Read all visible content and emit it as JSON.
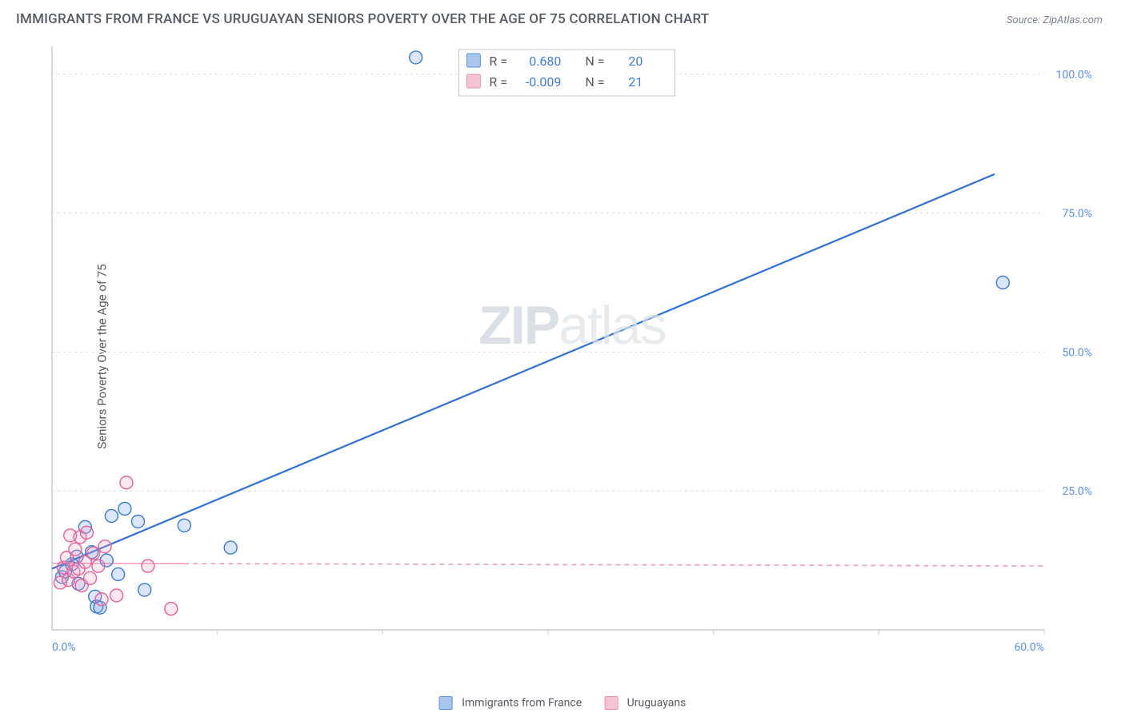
{
  "title": "IMMIGRANTS FROM FRANCE VS URUGUAYAN SENIORS POVERTY OVER THE AGE OF 75 CORRELATION CHART",
  "source": "Source: ZipAtlas.com",
  "y_axis_label": "Seniors Poverty Over the Age of 75",
  "watermark_a": "ZIP",
  "watermark_b": "atlas",
  "chart": {
    "type": "scatter-with-regression",
    "background_color": "#ffffff",
    "xlim": [
      0,
      60
    ],
    "ylim": [
      0,
      105
    ],
    "x_ticks": [
      0,
      60
    ],
    "x_tick_labels": [
      "0.0%",
      "60.0%"
    ],
    "y_ticks": [
      25,
      50,
      75,
      100
    ],
    "y_tick_labels": [
      "25.0%",
      "50.0%",
      "75.0%",
      "100.0%"
    ],
    "x_tick_color": "#5a8fe6",
    "y_tick_color": "#5a8fe6",
    "tick_fontsize": 14,
    "grid_color": "#d8dce2",
    "grid_dash": "3,4",
    "x_grid_positions": [
      10,
      20,
      30,
      40,
      50,
      60
    ],
    "axis_line_color": "#c8cdd5",
    "marker_radius": 8,
    "marker_stroke_width": 1.4,
    "marker_fill_opacity": 0.25,
    "series": [
      {
        "name": "Immigrants from France",
        "color": "#6aa1ea",
        "stroke": "#3b79d0",
        "points": [
          [
            0.6,
            9.5
          ],
          [
            0.8,
            10.5
          ],
          [
            1.2,
            11.8
          ],
          [
            1.5,
            13.2
          ],
          [
            1.6,
            8.3
          ],
          [
            2.0,
            18.5
          ],
          [
            2.4,
            14.0
          ],
          [
            2.6,
            6.0
          ],
          [
            2.7,
            4.2
          ],
          [
            2.9,
            4.0
          ],
          [
            3.3,
            12.5
          ],
          [
            3.6,
            20.5
          ],
          [
            4.0,
            10.0
          ],
          [
            4.4,
            21.8
          ],
          [
            5.2,
            19.5
          ],
          [
            5.6,
            7.2
          ],
          [
            8.0,
            18.8
          ],
          [
            10.8,
            14.8
          ],
          [
            22.0,
            103.0
          ],
          [
            57.5,
            62.5
          ]
        ],
        "regression": {
          "x1": 0,
          "y1": 11.0,
          "x2": 57,
          "y2": 82.0,
          "stroke": "#2e6fd8",
          "width": 2.2,
          "dash": ""
        }
      },
      {
        "name": "Uruguayans",
        "color": "#f3a6c0",
        "stroke": "#e6609a",
        "points": [
          [
            0.5,
            8.5
          ],
          [
            0.7,
            11.2
          ],
          [
            0.9,
            13.0
          ],
          [
            1.0,
            9.0
          ],
          [
            1.1,
            17.0
          ],
          [
            1.3,
            10.5
          ],
          [
            1.4,
            14.5
          ],
          [
            1.6,
            11.0
          ],
          [
            1.7,
            16.7
          ],
          [
            1.8,
            8.0
          ],
          [
            2.0,
            12.2
          ],
          [
            2.1,
            17.5
          ],
          [
            2.3,
            9.3
          ],
          [
            2.5,
            13.8
          ],
          [
            2.8,
            11.5
          ],
          [
            3.0,
            5.5
          ],
          [
            3.2,
            15.0
          ],
          [
            3.9,
            6.2
          ],
          [
            4.5,
            26.5
          ],
          [
            5.8,
            11.5
          ],
          [
            7.2,
            3.8
          ]
        ],
        "regression": {
          "x1": 0,
          "y1": 12.0,
          "x2": 60,
          "y2": 11.5,
          "stroke": "#f19bb9",
          "width": 1.6,
          "dash": "6,5"
        }
      }
    ]
  },
  "stats_box": {
    "border_color": "#bfc6d0",
    "bg": "#ffffff",
    "fontsize": 16,
    "label_color": "#555a63",
    "value_color": "#3e7de0",
    "rows": [
      {
        "swatch": "#a9c6ef",
        "swatch_stroke": "#5b8fde",
        "R": "0.680",
        "N": "20"
      },
      {
        "swatch": "#f6c3d5",
        "swatch_stroke": "#ea8fb4",
        "R": "-0.009",
        "N": "21"
      }
    ]
  },
  "bottom_legend": {
    "items": [
      {
        "swatch": "#a9c6ef",
        "swatch_stroke": "#5b8fde",
        "label": "Immigrants from France"
      },
      {
        "swatch": "#f6c3d5",
        "swatch_stroke": "#ea8fb4",
        "label": "Uruguayans"
      }
    ]
  }
}
